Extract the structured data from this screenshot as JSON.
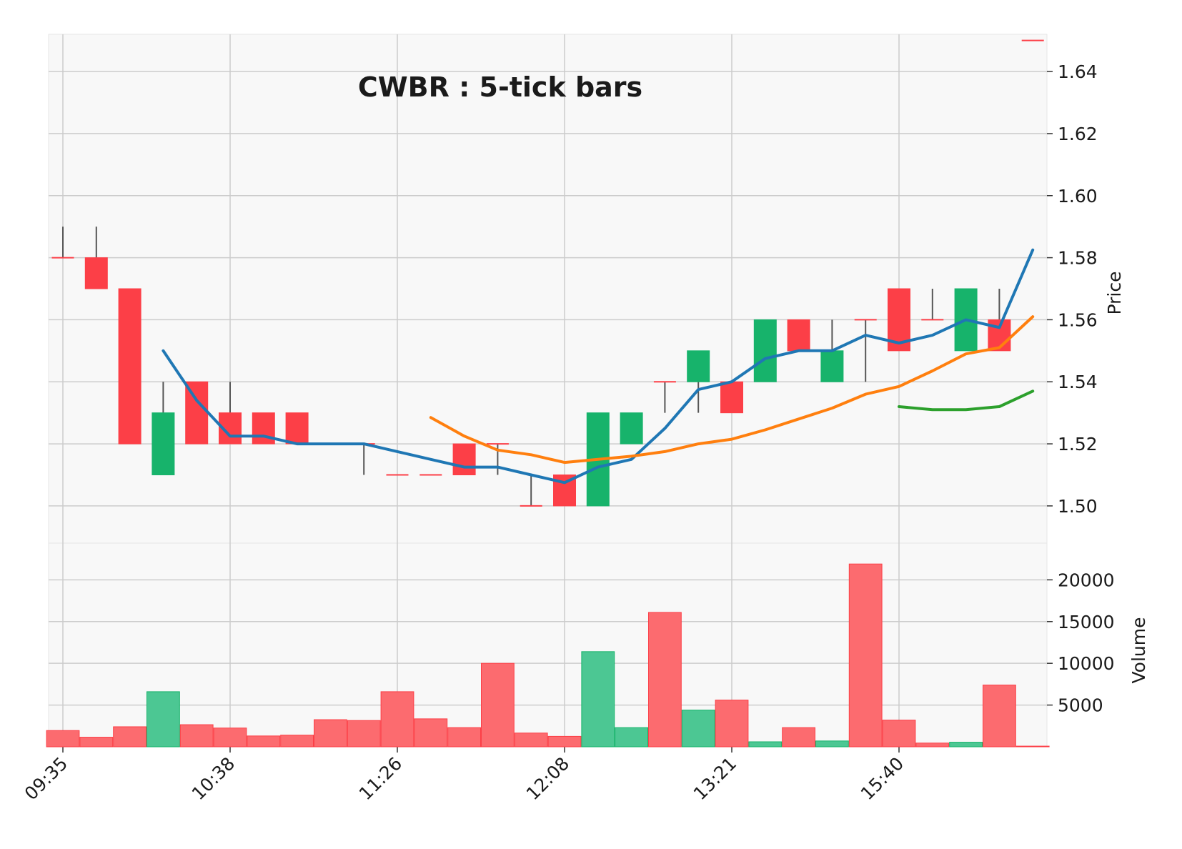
{
  "chart_data": {
    "type": "candlestick",
    "title": "CWBR : 5-tick bars",
    "price_panel": {
      "ylabel": "Price",
      "ylim": [
        1.488,
        1.652
      ],
      "yticks": [
        "1.50",
        "1.52",
        "1.54",
        "1.56",
        "1.58",
        "1.60",
        "1.62",
        "1.64"
      ],
      "grid": true
    },
    "volume_panel": {
      "ylabel": "Volume",
      "ylim": [
        0,
        22000
      ],
      "yticks": [
        "5000",
        "10000",
        "15000",
        "20000"
      ],
      "grid": true
    },
    "x_tick_labels": [
      {
        "index": 0,
        "label": "09:35"
      },
      {
        "index": 5,
        "label": "10:38"
      },
      {
        "index": 10,
        "label": "11:26"
      },
      {
        "index": 15,
        "label": "12:08"
      },
      {
        "index": 20,
        "label": "13:21"
      },
      {
        "index": 25,
        "label": "15:40"
      }
    ],
    "candles": [
      {
        "o": 1.58,
        "h": 1.59,
        "l": 1.58,
        "c": 1.58,
        "v": 1950
      },
      {
        "o": 1.58,
        "h": 1.59,
        "l": 1.57,
        "c": 1.57,
        "v": 1150
      },
      {
        "o": 1.57,
        "h": 1.57,
        "l": 1.52,
        "c": 1.52,
        "v": 2400
      },
      {
        "o": 1.51,
        "h": 1.54,
        "l": 1.51,
        "c": 1.53,
        "v": 6600
      },
      {
        "o": 1.54,
        "h": 1.54,
        "l": 1.52,
        "c": 1.52,
        "v": 2650
      },
      {
        "o": 1.53,
        "h": 1.54,
        "l": 1.52,
        "c": 1.52,
        "v": 2250
      },
      {
        "o": 1.53,
        "h": 1.53,
        "l": 1.52,
        "c": 1.52,
        "v": 1300
      },
      {
        "o": 1.53,
        "h": 1.53,
        "l": 1.52,
        "c": 1.52,
        "v": 1400
      },
      {
        "o": 1.52,
        "h": 1.52,
        "l": 1.52,
        "c": 1.52,
        "v": 3250
      },
      {
        "o": 1.52,
        "h": 1.52,
        "l": 1.51,
        "c": 1.52,
        "v": 3150
      },
      {
        "o": 1.51,
        "h": 1.51,
        "l": 1.51,
        "c": 1.51,
        "v": 6600
      },
      {
        "o": 1.51,
        "h": 1.51,
        "l": 1.51,
        "c": 1.51,
        "v": 3350
      },
      {
        "o": 1.52,
        "h": 1.52,
        "l": 1.51,
        "c": 1.51,
        "v": 2300
      },
      {
        "o": 1.52,
        "h": 1.52,
        "l": 1.51,
        "c": 1.52,
        "v": 10000
      },
      {
        "o": 1.5,
        "h": 1.51,
        "l": 1.5,
        "c": 1.5,
        "v": 1650
      },
      {
        "o": 1.51,
        "h": 1.51,
        "l": 1.5,
        "c": 1.5,
        "v": 1250
      },
      {
        "o": 1.5,
        "h": 1.53,
        "l": 1.5,
        "c": 1.53,
        "v": 11400
      },
      {
        "o": 1.52,
        "h": 1.53,
        "l": 1.52,
        "c": 1.53,
        "v": 2300
      },
      {
        "o": 1.54,
        "h": 1.54,
        "l": 1.53,
        "c": 1.54,
        "v": 16100
      },
      {
        "o": 1.54,
        "h": 1.55,
        "l": 1.53,
        "c": 1.55,
        "v": 4400
      },
      {
        "o": 1.54,
        "h": 1.54,
        "l": 1.53,
        "c": 1.53,
        "v": 5600
      },
      {
        "o": 1.54,
        "h": 1.56,
        "l": 1.54,
        "c": 1.56,
        "v": 600
      },
      {
        "o": 1.56,
        "h": 1.56,
        "l": 1.55,
        "c": 1.55,
        "v": 2300
      },
      {
        "o": 1.54,
        "h": 1.56,
        "l": 1.54,
        "c": 1.55,
        "v": 700
      },
      {
        "o": 1.56,
        "h": 1.56,
        "l": 1.54,
        "c": 1.56,
        "v": 21900
      },
      {
        "o": 1.57,
        "h": 1.57,
        "l": 1.55,
        "c": 1.55,
        "v": 3200
      },
      {
        "o": 1.56,
        "h": 1.57,
        "l": 1.56,
        "c": 1.56,
        "v": 450
      },
      {
        "o": 1.55,
        "h": 1.57,
        "l": 1.55,
        "c": 1.57,
        "v": 550
      },
      {
        "o": 1.56,
        "h": 1.57,
        "l": 1.55,
        "c": 1.55,
        "v": 7400
      },
      {
        "o": 1.65,
        "h": 1.65,
        "l": 1.65,
        "c": 1.65,
        "v": 80
      }
    ],
    "moving_averages": [
      {
        "color": "#1f77b4",
        "start": 3,
        "values": [
          1.55,
          1.534,
          1.5225,
          1.5225,
          1.52,
          1.52,
          1.52,
          1.5175,
          1.515,
          1.5125,
          1.5125,
          1.51,
          1.5075,
          1.5125,
          1.515,
          1.525,
          1.5375,
          1.54,
          1.5475,
          1.55,
          1.55,
          1.555,
          1.5525,
          1.555,
          1.56,
          1.5575,
          1.5825
        ]
      },
      {
        "color": "#ff7f0e",
        "start": 11,
        "values": [
          1.5285,
          1.5225,
          1.518,
          1.5165,
          1.514,
          1.515,
          1.516,
          1.5175,
          1.52,
          1.5215,
          1.5245,
          1.528,
          1.5315,
          1.536,
          1.5385,
          1.5435,
          1.549,
          1.551,
          1.561
        ]
      },
      {
        "color": "#2ca02c",
        "start": 25,
        "values": [
          1.532,
          1.531,
          1.531,
          1.532,
          1.537
        ]
      }
    ],
    "colors": {
      "up": "#17b36b",
      "down": "#fc3f47",
      "up_volume": "#4cc793",
      "down_volume": "#fc6b6f",
      "wick": "#555555",
      "panel_bg": "#f8f8f8",
      "grid": "#cccccc"
    }
  }
}
